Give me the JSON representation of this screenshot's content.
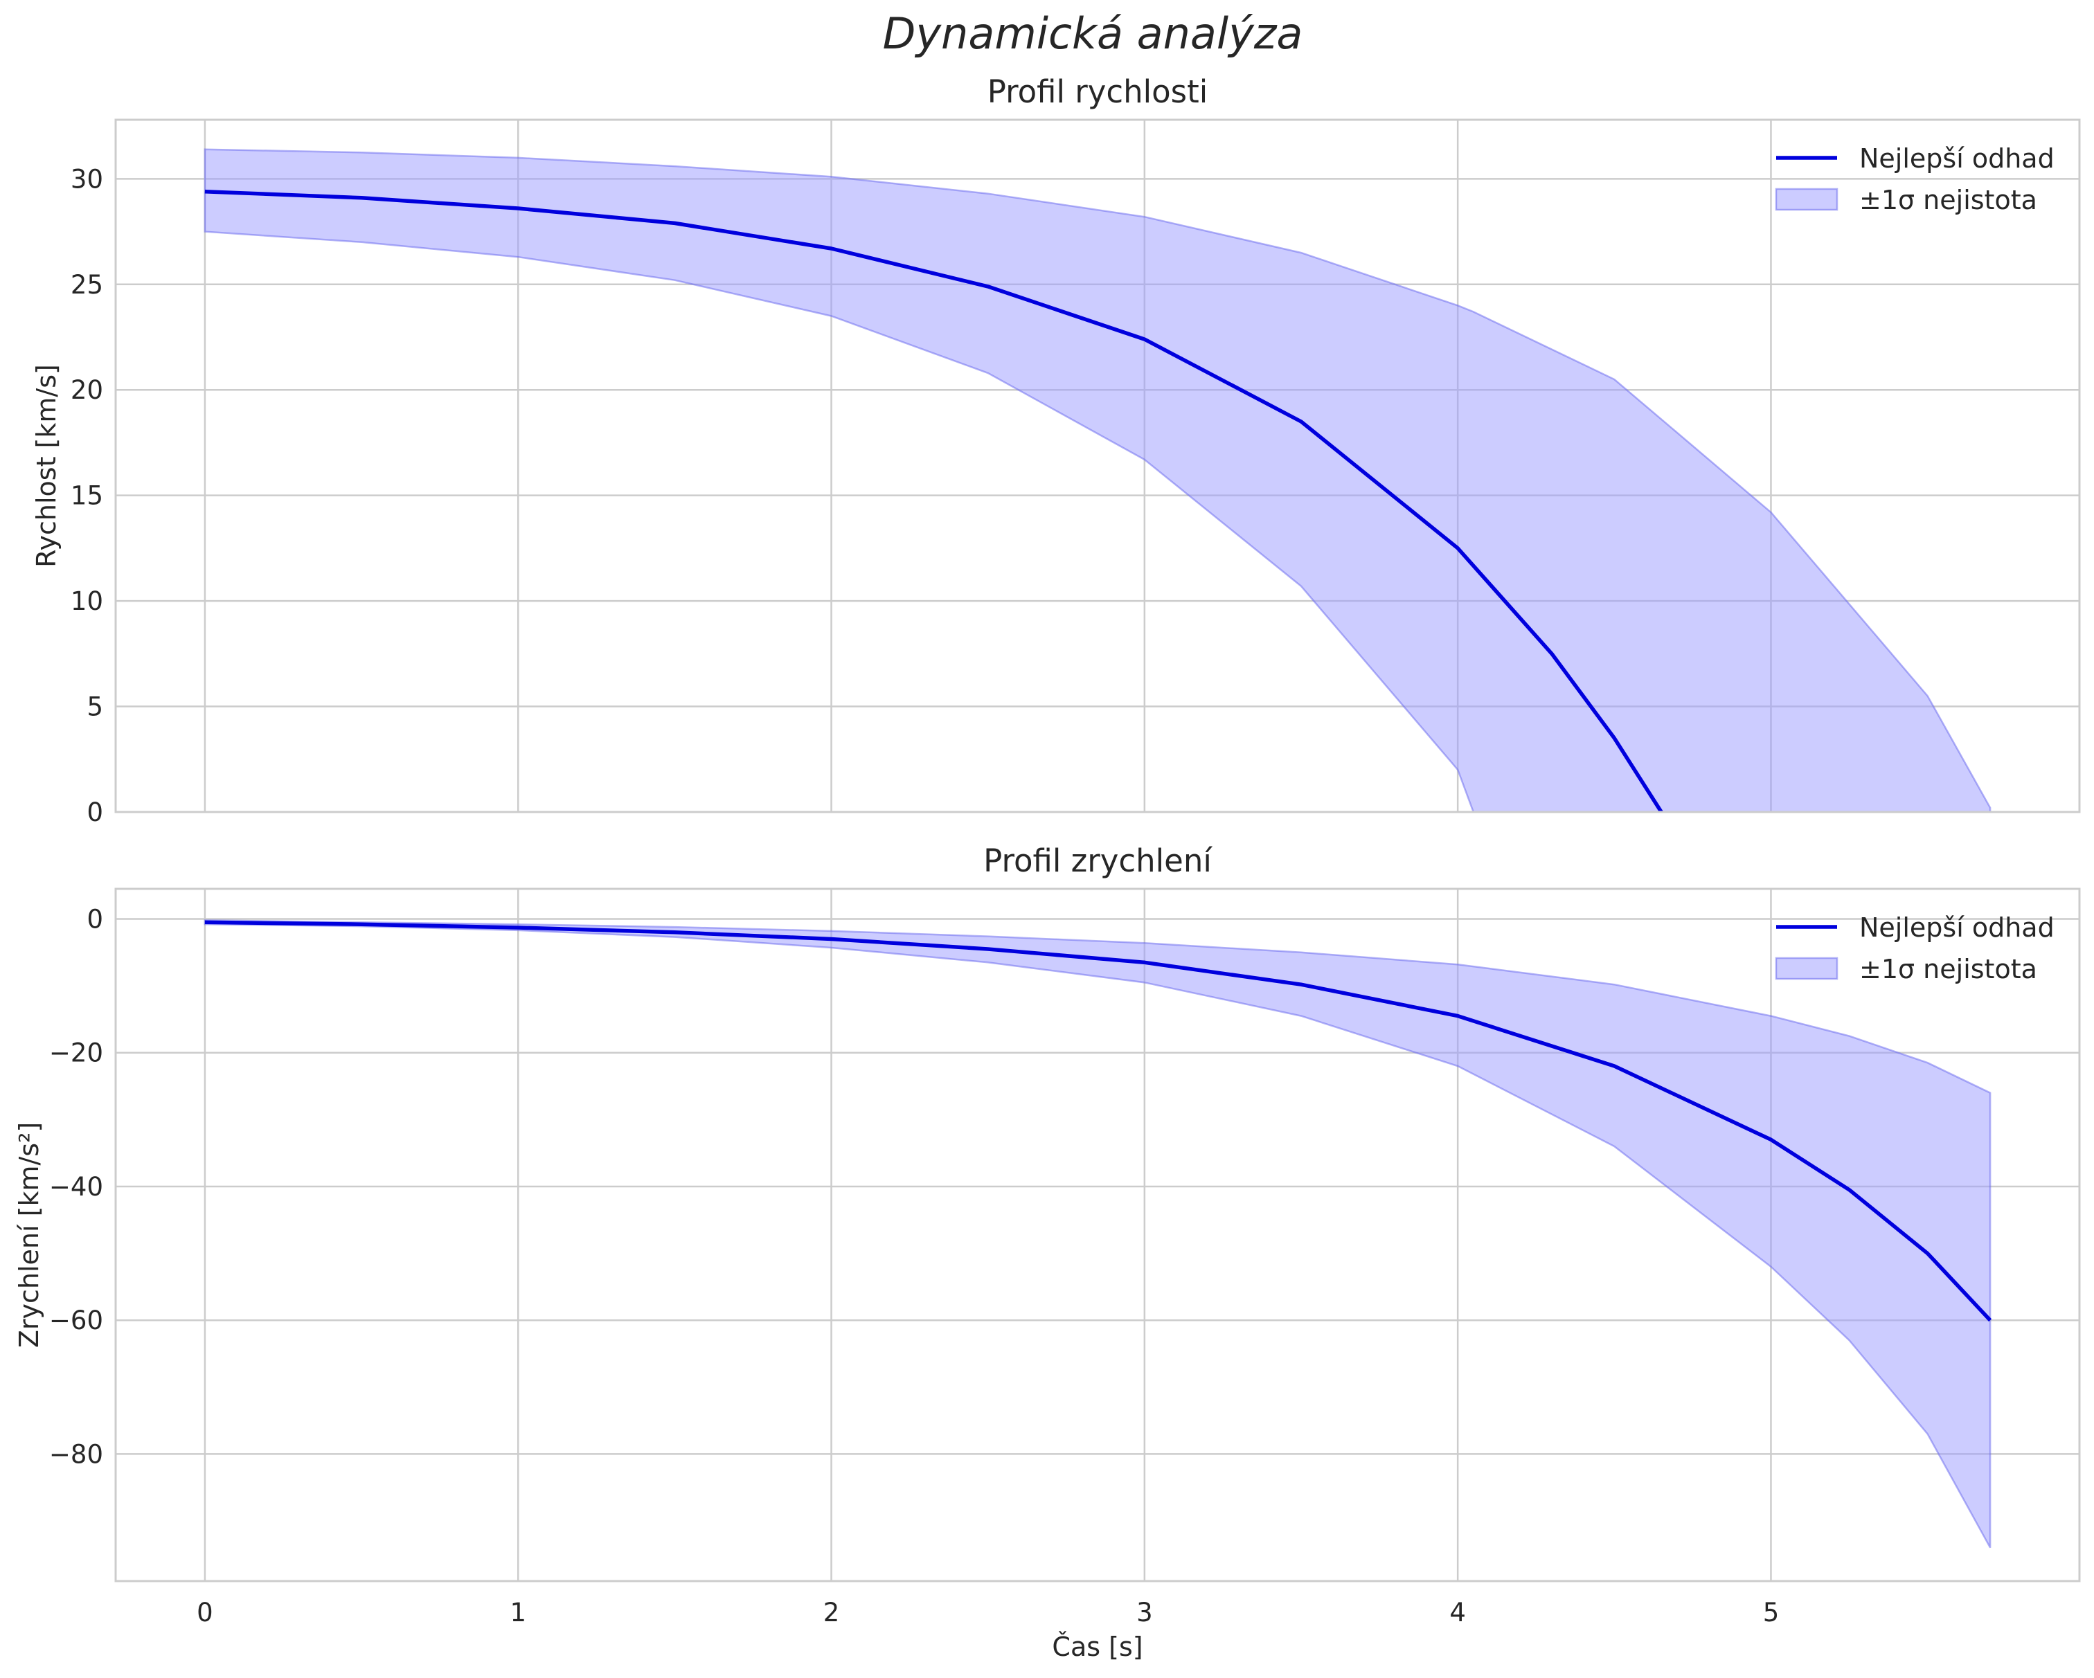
{
  "figure_title": "Dynamická analýza",
  "colors": {
    "line": "#0000dd",
    "band": "#9999ff",
    "grid": "#cccccc",
    "frame": "#cccccc",
    "text": "#262626"
  },
  "chart_data": [
    {
      "type": "line",
      "title": "Profil rychlosti",
      "xlabel": "",
      "ylabel": "Rychlost [km/s]",
      "xlim": [
        -0.285,
        5.985
      ],
      "ylim": [
        0,
        32.8
      ],
      "xticks": [
        0,
        1,
        2,
        3,
        4,
        5
      ],
      "xtick_labels_shown": false,
      "yticks": [
        0,
        5,
        10,
        15,
        20,
        25,
        30
      ],
      "ytick_labels": [
        "0",
        "5",
        "10",
        "15",
        "20",
        "25",
        "30"
      ],
      "legend": {
        "position": "top-right",
        "entries": [
          "Nejlepší odhad",
          "±1σ nejistota"
        ]
      },
      "series": [
        {
          "name": "Nejlepší odhad",
          "kind": "line",
          "x": [
            0,
            0.5,
            1.0,
            1.5,
            2.0,
            2.5,
            3.0,
            3.5,
            4.0,
            4.3,
            4.5,
            4.65
          ],
          "y": [
            29.4,
            29.1,
            28.6,
            27.9,
            26.7,
            24.9,
            22.4,
            18.5,
            12.5,
            7.5,
            3.5,
            0
          ]
        },
        {
          "name": "±1σ nejistota",
          "kind": "band",
          "x": [
            0,
            0.5,
            1.0,
            1.5,
            2.0,
            2.5,
            3.0,
            3.5,
            4.0,
            4.05,
            4.5,
            5.0,
            5.5,
            5.7
          ],
          "upper": [
            31.4,
            31.25,
            31.0,
            30.6,
            30.1,
            29.3,
            28.2,
            26.5,
            24.0,
            23.7,
            20.5,
            14.2,
            5.5,
            0.2
          ],
          "lower": [
            27.5,
            27.0,
            26.3,
            25.2,
            23.5,
            20.8,
            16.7,
            10.7,
            2.0,
            0,
            0,
            0,
            0,
            0
          ]
        }
      ]
    },
    {
      "type": "line",
      "title": "Profil zrychlení",
      "xlabel": "Čas [s]",
      "ylabel": "Zrychlení [km/s²]",
      "xlim": [
        -0.285,
        5.985
      ],
      "ylim": [
        -99,
        4.5
      ],
      "xticks": [
        0,
        1,
        2,
        3,
        4,
        5
      ],
      "xtick_labels": [
        "0",
        "1",
        "2",
        "3",
        "4",
        "5"
      ],
      "yticks": [
        0,
        -20,
        -40,
        -60,
        -80
      ],
      "ytick_labels": [
        "0",
        "−20",
        "−40",
        "−60",
        "−80"
      ],
      "legend": {
        "position": "top-right",
        "entries": [
          "Nejlepší odhad",
          "±1σ nejistota"
        ]
      },
      "series": [
        {
          "name": "Nejlepší odhad",
          "kind": "line",
          "x": [
            0,
            0.5,
            1.0,
            1.5,
            2.0,
            2.5,
            3.0,
            3.5,
            4.0,
            4.5,
            5.0,
            5.25,
            5.5,
            5.7
          ],
          "y": [
            -0.5,
            -0.8,
            -1.3,
            -2.0,
            -3.0,
            -4.5,
            -6.5,
            -9.8,
            -14.5,
            -22.0,
            -33.0,
            -40.5,
            -50.0,
            -60.0
          ]
        },
        {
          "name": "±1σ nejistota",
          "kind": "band",
          "x": [
            0,
            0.5,
            1.0,
            1.5,
            2.0,
            2.5,
            3.0,
            3.5,
            4.0,
            4.5,
            5.0,
            5.25,
            5.5,
            5.7
          ],
          "upper": [
            -0.2,
            -0.5,
            -0.8,
            -1.2,
            -1.8,
            -2.6,
            -3.6,
            -5.0,
            -6.8,
            -9.8,
            -14.5,
            -17.5,
            -21.5,
            -26.0
          ],
          "lower": [
            -0.8,
            -1.1,
            -1.7,
            -2.7,
            -4.3,
            -6.5,
            -9.5,
            -14.5,
            -22.0,
            -34.0,
            -52.0,
            -63.0,
            -77.0,
            -94.0
          ]
        }
      ]
    }
  ]
}
